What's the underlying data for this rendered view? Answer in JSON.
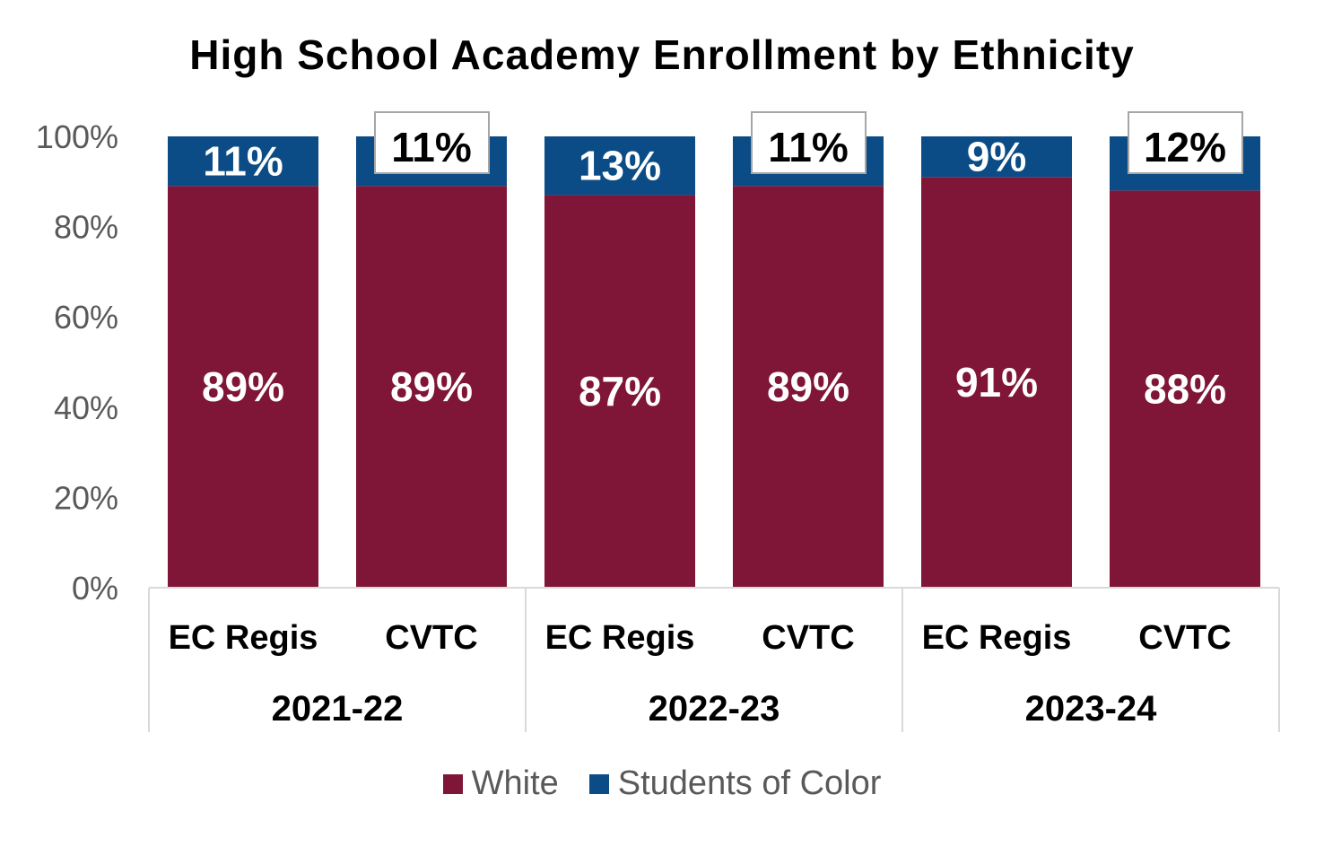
{
  "chart_data": {
    "type": "bar",
    "stacked": true,
    "title": "High School Academy Enrollment by Ethnicity",
    "xlabel": "",
    "ylabel": "",
    "ylim": [
      0,
      100
    ],
    "yticks": [
      "0%",
      "20%",
      "40%",
      "60%",
      "80%",
      "100%"
    ],
    "groups": [
      {
        "label": "2021-22",
        "categories": [
          "EC Regis",
          "CVTC"
        ]
      },
      {
        "label": "2022-23",
        "categories": [
          "EC Regis",
          "CVTC"
        ]
      },
      {
        "label": "2023-24",
        "categories": [
          "EC Regis",
          "CVTC"
        ]
      }
    ],
    "categories": [
      "EC Regis",
      "CVTC",
      "EC Regis",
      "CVTC",
      "EC Regis",
      "CVTC"
    ],
    "series": [
      {
        "name": "White",
        "color": "#7F1537",
        "values": [
          89,
          89,
          87,
          89,
          91,
          88
        ],
        "labels": [
          "89%",
          "89%",
          "87%",
          "89%",
          "91%",
          "88%"
        ]
      },
      {
        "name": "Students of Color",
        "color": "#0B4C86",
        "values": [
          11,
          11,
          13,
          11,
          9,
          12
        ],
        "labels": [
          "11%",
          "11%",
          "13%",
          "11%",
          "9%",
          "12%"
        ],
        "boxed_label": [
          false,
          true,
          false,
          true,
          false,
          true
        ]
      }
    ],
    "grid": false,
    "legend_position": "bottom"
  }
}
